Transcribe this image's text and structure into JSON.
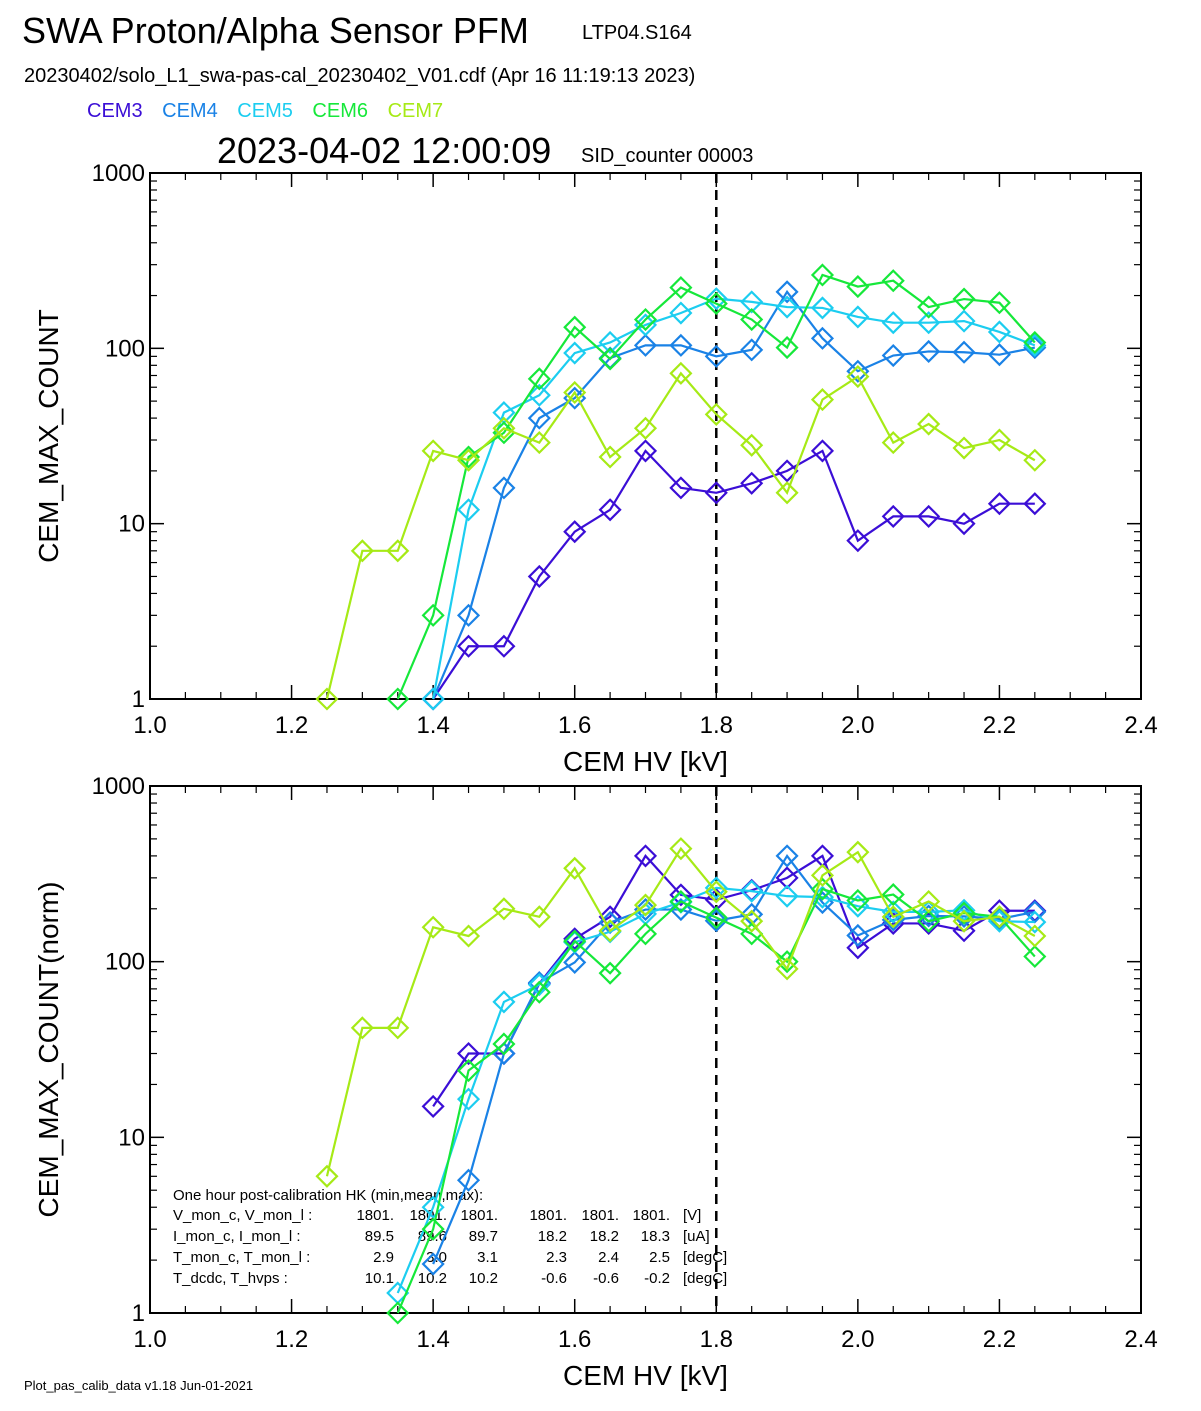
{
  "header": {
    "title": "SWA Proton/Alpha Sensor PFM",
    "subtitle": "LTP04.S164",
    "file": "20230402/solo_L1_swa-pas-cal_20230402_V01.cdf  (Apr 16 11:19:13 2023)",
    "timestamp": "2023-04-02 12:00:09",
    "sid": "SID_counter 00003"
  },
  "legend": [
    {
      "name": "CEM3",
      "color": "#3b0ed6"
    },
    {
      "name": "CEM4",
      "color": "#1a82e6"
    },
    {
      "name": "CEM5",
      "color": "#1ccdf0"
    },
    {
      "name": "CEM6",
      "color": "#16e83a"
    },
    {
      "name": "CEM7",
      "color": "#a6ea16"
    }
  ],
  "footer": "Plot_pas_calib_data v1.18 Jun-01-2021",
  "hk": {
    "title": "One hour post-calibration HK (min,mean,max):",
    "rows": [
      [
        "V_mon_c, V_mon_l :",
        "1801.",
        "1801.",
        "1801.",
        "1801.",
        "1801.",
        "1801.",
        "[V]"
      ],
      [
        "I_mon_c,  I_mon_l :",
        "89.5",
        "89.6",
        "89.7",
        "18.2",
        "18.2",
        "18.3",
        "[uA]"
      ],
      [
        "T_mon_c, T_mon_l :",
        "2.9",
        "3.0",
        "3.1",
        "2.3",
        "2.4",
        "2.5",
        "[degC]"
      ],
      [
        "T_dcdc,    T_hvps :",
        "10.1",
        "10.2",
        "10.2",
        "-0.6",
        "-0.6",
        "-0.2",
        "[degC]"
      ]
    ]
  },
  "chart_data": [
    {
      "type": "line",
      "xlabel": "CEM HV [kV]",
      "ylabel": "CEM_MAX_COUNT",
      "xlim": [
        1.0,
        2.4
      ],
      "ylim": [
        1,
        1000
      ],
      "yscale": "log",
      "xticks": [
        "1.0",
        "1.2",
        "1.4",
        "1.6",
        "1.8",
        "2.0",
        "2.2",
        "2.4"
      ],
      "yticks": [
        "1",
        "10",
        "100",
        "1000"
      ],
      "vline": 1.8,
      "series": [
        {
          "name": "CEM3",
          "color": "#3b0ed6",
          "x": [
            1.4,
            1.45,
            1.5,
            1.55,
            1.6,
            1.65,
            1.7,
            1.75,
            1.8,
            1.85,
            1.9,
            1.95,
            2.0,
            2.05,
            2.1,
            2.15,
            2.2,
            2.25
          ],
          "y": [
            1,
            2,
            2,
            5,
            9,
            12,
            26,
            16,
            15,
            17,
            20,
            26,
            8,
            11,
            11,
            10,
            13,
            13
          ]
        },
        {
          "name": "CEM4",
          "color": "#1a82e6",
          "x": [
            1.4,
            1.45,
            1.5,
            1.55,
            1.6,
            1.65,
            1.7,
            1.75,
            1.8,
            1.85,
            1.9,
            1.95,
            2.0,
            2.05,
            2.1,
            2.15,
            2.2,
            2.25
          ],
          "y": [
            1,
            3,
            16,
            40,
            52,
            88,
            104,
            104,
            90,
            98,
            210,
            114,
            74,
            91,
            96,
            95,
            92,
            101
          ]
        },
        {
          "name": "CEM5",
          "color": "#1ccdf0",
          "x": [
            1.4,
            1.45,
            1.5,
            1.55,
            1.6,
            1.65,
            1.7,
            1.75,
            1.8,
            1.85,
            1.9,
            1.95,
            2.0,
            2.05,
            2.1,
            2.15,
            2.2,
            2.25
          ],
          "y": [
            1,
            12,
            43,
            54,
            94,
            108,
            136,
            159,
            192,
            184,
            172,
            170,
            151,
            140,
            140,
            143,
            124,
            104
          ]
        },
        {
          "name": "CEM6",
          "color": "#16e83a",
          "x": [
            1.35,
            1.4,
            1.45,
            1.5,
            1.55,
            1.6,
            1.65,
            1.7,
            1.75,
            1.8,
            1.85,
            1.9,
            1.95,
            2.0,
            2.05,
            2.1,
            2.15,
            2.2,
            2.25
          ],
          "y": [
            1,
            3,
            24,
            33,
            67,
            132,
            87,
            146,
            222,
            180,
            146,
            101,
            262,
            225,
            243,
            172,
            191,
            182,
            108
          ]
        },
        {
          "name": "CEM7",
          "color": "#a6ea16",
          "x": [
            1.25,
            1.3,
            1.35,
            1.4,
            1.45,
            1.5,
            1.55,
            1.6,
            1.65,
            1.7,
            1.75,
            1.8,
            1.85,
            1.9,
            1.95,
            2.0,
            2.05,
            2.1,
            2.15,
            2.2,
            2.25
          ],
          "y": [
            1,
            7,
            7,
            26,
            23,
            35,
            29,
            56,
            24,
            35,
            72,
            42,
            28,
            15,
            51,
            69,
            29,
            37,
            27,
            30,
            23
          ]
        }
      ]
    },
    {
      "type": "line",
      "xlabel": "CEM HV [kV]",
      "ylabel": "CEM_MAX_COUNT(norm)",
      "xlim": [
        1.0,
        2.4
      ],
      "ylim": [
        1,
        1000
      ],
      "yscale": "log",
      "xticks": [
        "1.0",
        "1.2",
        "1.4",
        "1.6",
        "1.8",
        "2.0",
        "2.2",
        "2.4"
      ],
      "yticks": [
        "1",
        "10",
        "100",
        "1000"
      ],
      "vline": 1.8,
      "series": [
        {
          "name": "CEM3",
          "color": "#3b0ed6",
          "x": [
            1.4,
            1.45,
            1.5,
            1.55,
            1.6,
            1.65,
            1.7,
            1.75,
            1.8,
            1.85,
            1.9,
            1.95,
            2.0,
            2.05,
            2.1,
            2.15,
            2.2,
            2.25
          ],
          "y": [
            15,
            30,
            30,
            75,
            135,
            180,
            400,
            240,
            225,
            255,
            300,
            400,
            120,
            165,
            165,
            150,
            195,
            195
          ]
        },
        {
          "name": "CEM4",
          "color": "#1a82e6",
          "x": [
            1.4,
            1.45,
            1.5,
            1.55,
            1.6,
            1.65,
            1.7,
            1.75,
            1.8,
            1.85,
            1.9,
            1.95,
            2.0,
            2.05,
            2.1,
            2.15,
            2.2,
            2.25
          ],
          "y": [
            1.9,
            5.7,
            30,
            76,
            99,
            167,
            198,
            198,
            171,
            186,
            400,
            217,
            141,
            173,
            182,
            181,
            175,
            192
          ]
        },
        {
          "name": "CEM5",
          "color": "#1ccdf0",
          "x": [
            1.35,
            1.4,
            1.45,
            1.5,
            1.55,
            1.6,
            1.65,
            1.7,
            1.75,
            1.8,
            1.85,
            1.9,
            1.95,
            2.0,
            2.05,
            2.1,
            2.15,
            2.2,
            2.25
          ],
          "y": [
            1.3,
            4,
            16.5,
            59,
            74,
            129,
            148,
            187,
            218,
            263,
            252,
            236,
            233,
            207,
            192,
            192,
            196,
            170,
            168
          ]
        },
        {
          "name": "CEM6",
          "color": "#16e83a",
          "x": [
            1.35,
            1.4,
            1.45,
            1.5,
            1.55,
            1.6,
            1.65,
            1.7,
            1.75,
            1.8,
            1.85,
            1.9,
            1.95,
            2.0,
            2.05,
            2.1,
            2.15,
            2.2,
            2.25
          ],
          "y": [
            1,
            3,
            24,
            34,
            67,
            131,
            86,
            144,
            220,
            178,
            144,
            100,
            259,
            223,
            241,
            170,
            189,
            180,
            107
          ]
        },
        {
          "name": "CEM7",
          "color": "#a6ea16",
          "x": [
            1.25,
            1.3,
            1.35,
            1.4,
            1.45,
            1.5,
            1.55,
            1.6,
            1.65,
            1.7,
            1.75,
            1.8,
            1.85,
            1.9,
            1.95,
            2.0,
            2.05,
            2.1,
            2.15,
            2.2,
            2.25
          ],
          "y": [
            6,
            42,
            42,
            157,
            140,
            200,
            180,
            340,
            150,
            210,
            440,
            250,
            170,
            91,
            310,
            420,
            180,
            220,
            170,
            180,
            140
          ]
        }
      ]
    }
  ]
}
